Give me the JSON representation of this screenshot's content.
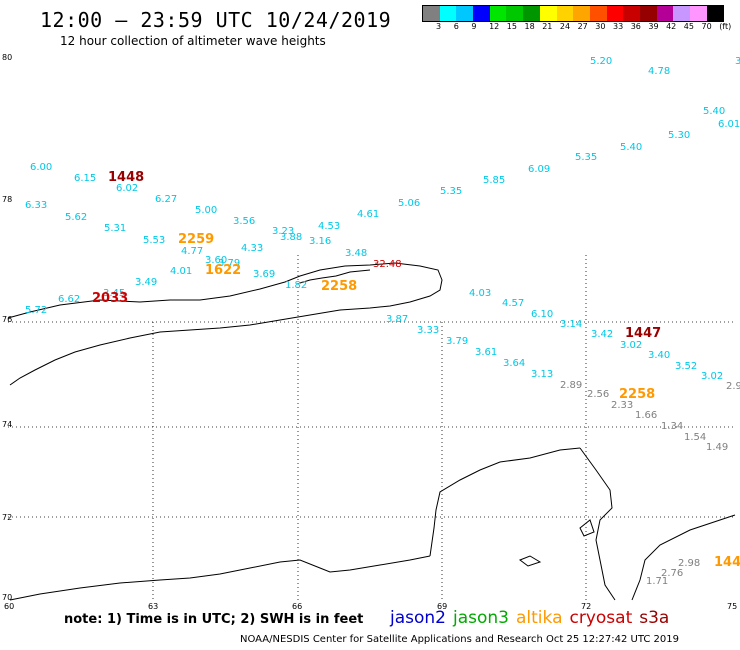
{
  "header": {
    "title": "12:00 – 23:59 UTC 10/24/2019",
    "subtitle": "12 hour collection of altimeter wave heights"
  },
  "legend": {
    "colors": [
      "#808080",
      "#00ffff",
      "#00c8ff",
      "#0000ff",
      "#00e600",
      "#00c800",
      "#009600",
      "#ffff00",
      "#ffd200",
      "#ffa500",
      "#ff5000",
      "#ff0000",
      "#c80000",
      "#960000",
      "#b40096",
      "#c896ff",
      "#ff96ff",
      "#000000"
    ],
    "labels": [
      "3",
      "6",
      "9",
      "12",
      "15",
      "18",
      "21",
      "24",
      "27",
      "30",
      "33",
      "36",
      "39",
      "42",
      "45",
      "70",
      "(ft)"
    ]
  },
  "axes": {
    "lat_labels": [
      "80",
      "78",
      "76",
      "74",
      "72",
      "70"
    ],
    "lon_labels": [
      "60",
      "63",
      "66",
      "69",
      "72",
      "75"
    ]
  },
  "footer": {
    "note": "note:  1) Time is in UTC;  2) SWH is in feet",
    "satellites": [
      {
        "name": "jason2",
        "color": "#0000cc"
      },
      {
        "name": "jason3",
        "color": "#00aa00"
      },
      {
        "name": "altika",
        "color": "#ff9900"
      },
      {
        "name": "cryosat",
        "color": "#cc0000"
      },
      {
        "name": "s3a",
        "color": "#990000"
      }
    ],
    "credit": "NOAA/NESDIS Center for Satellite Applications and Research    Oct 25 12:27:42 UTC 2019"
  },
  "observations": [
    {
      "text": "5.20",
      "c": "#00c8e6"
    },
    {
      "text": "4.78",
      "c": "#00c8e6"
    },
    {
      "text": "3.",
      "c": "#00c8e6"
    },
    {
      "text": "5.40",
      "c": "#00c8e6"
    },
    {
      "text": "6.01",
      "c": "#00c8e6"
    },
    {
      "text": "5.30",
      "c": "#00c8e6"
    },
    {
      "text": "5.40",
      "c": "#00c8e6"
    },
    {
      "text": "5.35",
      "c": "#00c8e6"
    },
    {
      "text": "6.09",
      "c": "#00c8e6"
    },
    {
      "text": "5.85",
      "c": "#00c8e6"
    },
    {
      "text": "5.35",
      "c": "#00c8e6"
    },
    {
      "text": "5.06",
      "c": "#00c8e6"
    },
    {
      "text": "4.61",
      "c": "#00c8e6"
    },
    {
      "text": "4.53",
      "c": "#00c8e6"
    },
    {
      "text": "3.16",
      "c": "#00c8e6"
    },
    {
      "text": "3.48",
      "c": "#00c8e6"
    },
    {
      "text": "6.00",
      "c": "#00c8e6"
    },
    {
      "text": "6.15",
      "c": "#00c8e6"
    },
    {
      "text": "1448",
      "c": "#990000",
      "b": true
    },
    {
      "text": "6.02",
      "c": "#00c8e6"
    },
    {
      "text": "6.33",
      "c": "#00c8e6"
    },
    {
      "text": "6.27",
      "c": "#00c8e6"
    },
    {
      "text": "5.62",
      "c": "#00c8e6"
    },
    {
      "text": "5.00",
      "c": "#00c8e6"
    },
    {
      "text": "5.31",
      "c": "#00c8e6"
    },
    {
      "text": "3.56",
      "c": "#00c8e6"
    },
    {
      "text": "3.23",
      "c": "#00c8e6"
    },
    {
      "text": "3.88",
      "c": "#00c8e6"
    },
    {
      "text": "5.53",
      "c": "#00c8e6"
    },
    {
      "text": "2259",
      "c": "#ff9900",
      "b": true
    },
    {
      "text": "4.77",
      "c": "#00c8e6"
    },
    {
      "text": "4.33",
      "c": "#00c8e6"
    },
    {
      "text": "3.60",
      "c": "#00c8e6"
    },
    {
      "text": "3.79",
      "c": "#00c8e6"
    },
    {
      "text": "4.01",
      "c": "#00c8e6"
    },
    {
      "text": "1622",
      "c": "#ff9900",
      "b": true
    },
    {
      "text": "3.69",
      "c": "#00c8e6"
    },
    {
      "text": "3.49",
      "c": "#00c8e6"
    },
    {
      "text": "3.45",
      "c": "#00c8e6"
    },
    {
      "text": "6.62",
      "c": "#00c8e6"
    },
    {
      "text": "2033",
      "c": "#cc0000",
      "b": true
    },
    {
      "text": "5.72",
      "c": "#00c8e6"
    },
    {
      "text": "1.82",
      "c": "#00c8e6"
    },
    {
      "text": "2258",
      "c": "#ff9900",
      "b": true
    },
    {
      "text": "32.48",
      "c": "#cc0000"
    },
    {
      "text": "4.03",
      "c": "#00c8e6"
    },
    {
      "text": "4.57",
      "c": "#00c8e6"
    },
    {
      "text": "6.10",
      "c": "#00c8e6"
    },
    {
      "text": "3.14",
      "c": "#00c8e6"
    },
    {
      "text": "3.87",
      "c": "#00c8e6"
    },
    {
      "text": "3.33",
      "c": "#00c8e6"
    },
    {
      "text": "3.42",
      "c": "#00c8e6"
    },
    {
      "text": "1447",
      "c": "#990000",
      "b": true
    },
    {
      "text": "3.79",
      "c": "#00c8e6"
    },
    {
      "text": "3.02",
      "c": "#00c8e6"
    },
    {
      "text": "3.61",
      "c": "#00c8e6"
    },
    {
      "text": "3.40",
      "c": "#00c8e6"
    },
    {
      "text": "3.64",
      "c": "#00c8e6"
    },
    {
      "text": "3.52",
      "c": "#00c8e6"
    },
    {
      "text": "3.13",
      "c": "#00c8e6"
    },
    {
      "text": "3.02",
      "c": "#00c8e6"
    },
    {
      "text": "2.89",
      "c": "#808080"
    },
    {
      "text": "2.9",
      "c": "#808080"
    },
    {
      "text": "2.56",
      "c": "#808080"
    },
    {
      "text": "2258",
      "c": "#ff9900",
      "b": true
    },
    {
      "text": "2.33",
      "c": "#808080"
    },
    {
      "text": "1.66",
      "c": "#808080"
    },
    {
      "text": "1.34",
      "c": "#808080"
    },
    {
      "text": "1.54",
      "c": "#808080"
    },
    {
      "text": "1.49",
      "c": "#808080"
    },
    {
      "text": "2.98",
      "c": "#808080"
    },
    {
      "text": "144",
      "c": "#ff9900",
      "b": true
    },
    {
      "text": "2.76",
      "c": "#808080"
    },
    {
      "text": "1.71",
      "c": "#808080"
    }
  ]
}
